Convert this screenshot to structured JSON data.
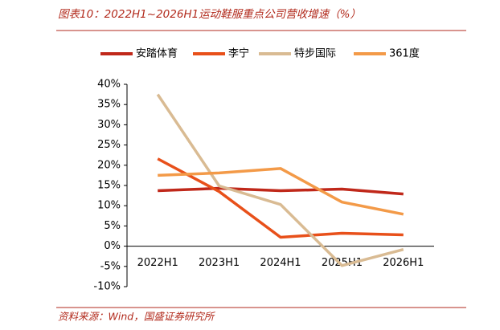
{
  "chart_data": {
    "type": "line",
    "title": "图表10：2022H1~2026H1运动鞋服重点公司营收增速（%）",
    "source": "资料来源：Wind，国盛证券研究所",
    "categories": [
      "2022H1",
      "2023H1",
      "2024H1",
      "2025H1",
      "2026H1"
    ],
    "series": [
      {
        "name": "安踏体育",
        "color": "#c0281a",
        "values": [
          13.7,
          14.3,
          13.7,
          14.1,
          12.9
        ]
      },
      {
        "name": "李宁",
        "color": "#e8501a",
        "values": [
          21.6,
          13.5,
          2.2,
          3.2,
          2.8
        ]
      },
      {
        "name": "特步国际",
        "color": "#d9bb93",
        "values": [
          37.5,
          14.9,
          10.3,
          -4.8,
          -0.8
        ]
      },
      {
        "name": "361度",
        "color": "#f39a48",
        "values": [
          17.5,
          18.1,
          19.2,
          10.9,
          7.9
        ]
      }
    ],
    "ylim": [
      -10,
      40
    ],
    "yticks": [
      {
        "value": -10,
        "label": "-10%"
      },
      {
        "value": -5,
        "label": "-5%"
      },
      {
        "value": 0,
        "label": "0%"
      },
      {
        "value": 5,
        "label": "5%"
      },
      {
        "value": 10,
        "label": "10%"
      },
      {
        "value": 15,
        "label": "15%"
      },
      {
        "value": 20,
        "label": "20%"
      },
      {
        "value": 25,
        "label": "25%"
      },
      {
        "value": 30,
        "label": "30%"
      },
      {
        "value": 35,
        "label": "35%"
      },
      {
        "value": 40,
        "label": "40%"
      }
    ],
    "grid": false
  }
}
